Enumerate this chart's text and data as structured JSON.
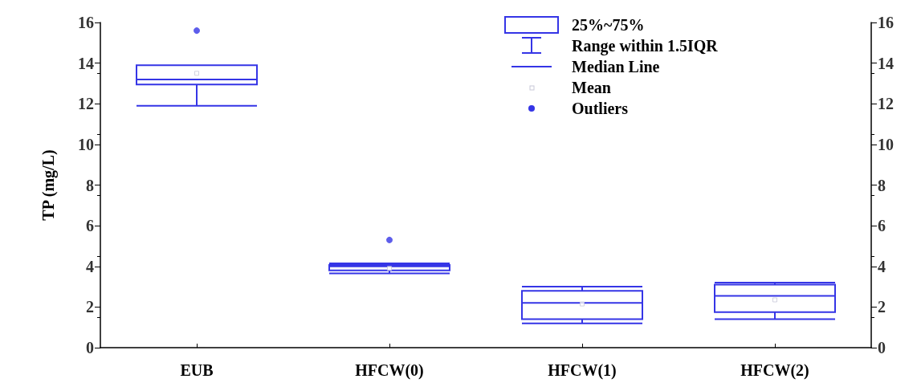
{
  "chart_data": {
    "type": "box",
    "ylabel": "TP (mg/L)",
    "categories": [
      "EUB",
      "HFCW(0)",
      "HFCW(1)",
      "HFCW(2)"
    ],
    "series": [
      {
        "color": "#3535e6",
        "boxes": [
          {
            "low": 11.9,
            "q1": 12.95,
            "median": 13.2,
            "q3": 13.9,
            "high": 13.9,
            "mean": 13.5,
            "outliers": [
              15.6
            ]
          },
          {
            "low": 3.65,
            "q1": 3.8,
            "median": 4.0,
            "q3": 4.07,
            "high": 4.15,
            "mean": 3.9,
            "outliers": [
              5.3
            ]
          },
          {
            "low": 1.2,
            "q1": 1.4,
            "median": 2.2,
            "q3": 2.8,
            "high": 3.0,
            "mean": 2.15
          },
          {
            "low": 1.4,
            "q1": 1.75,
            "median": 2.55,
            "q3": 3.1,
            "high": 3.2,
            "mean": 2.35
          }
        ]
      }
    ],
    "ylim": [
      0,
      16
    ],
    "yticks": [
      0,
      2,
      4,
      6,
      8,
      10,
      12,
      14,
      16
    ],
    "y2lim": [
      0,
      16
    ],
    "y2ticks": [
      0,
      2,
      4,
      6,
      8,
      10,
      12,
      14,
      16
    ],
    "grid": false,
    "annotations": [
      "25%~75%",
      "Range within 1.5IQR",
      "Median Line",
      "Mean",
      "Outliers"
    ]
  }
}
